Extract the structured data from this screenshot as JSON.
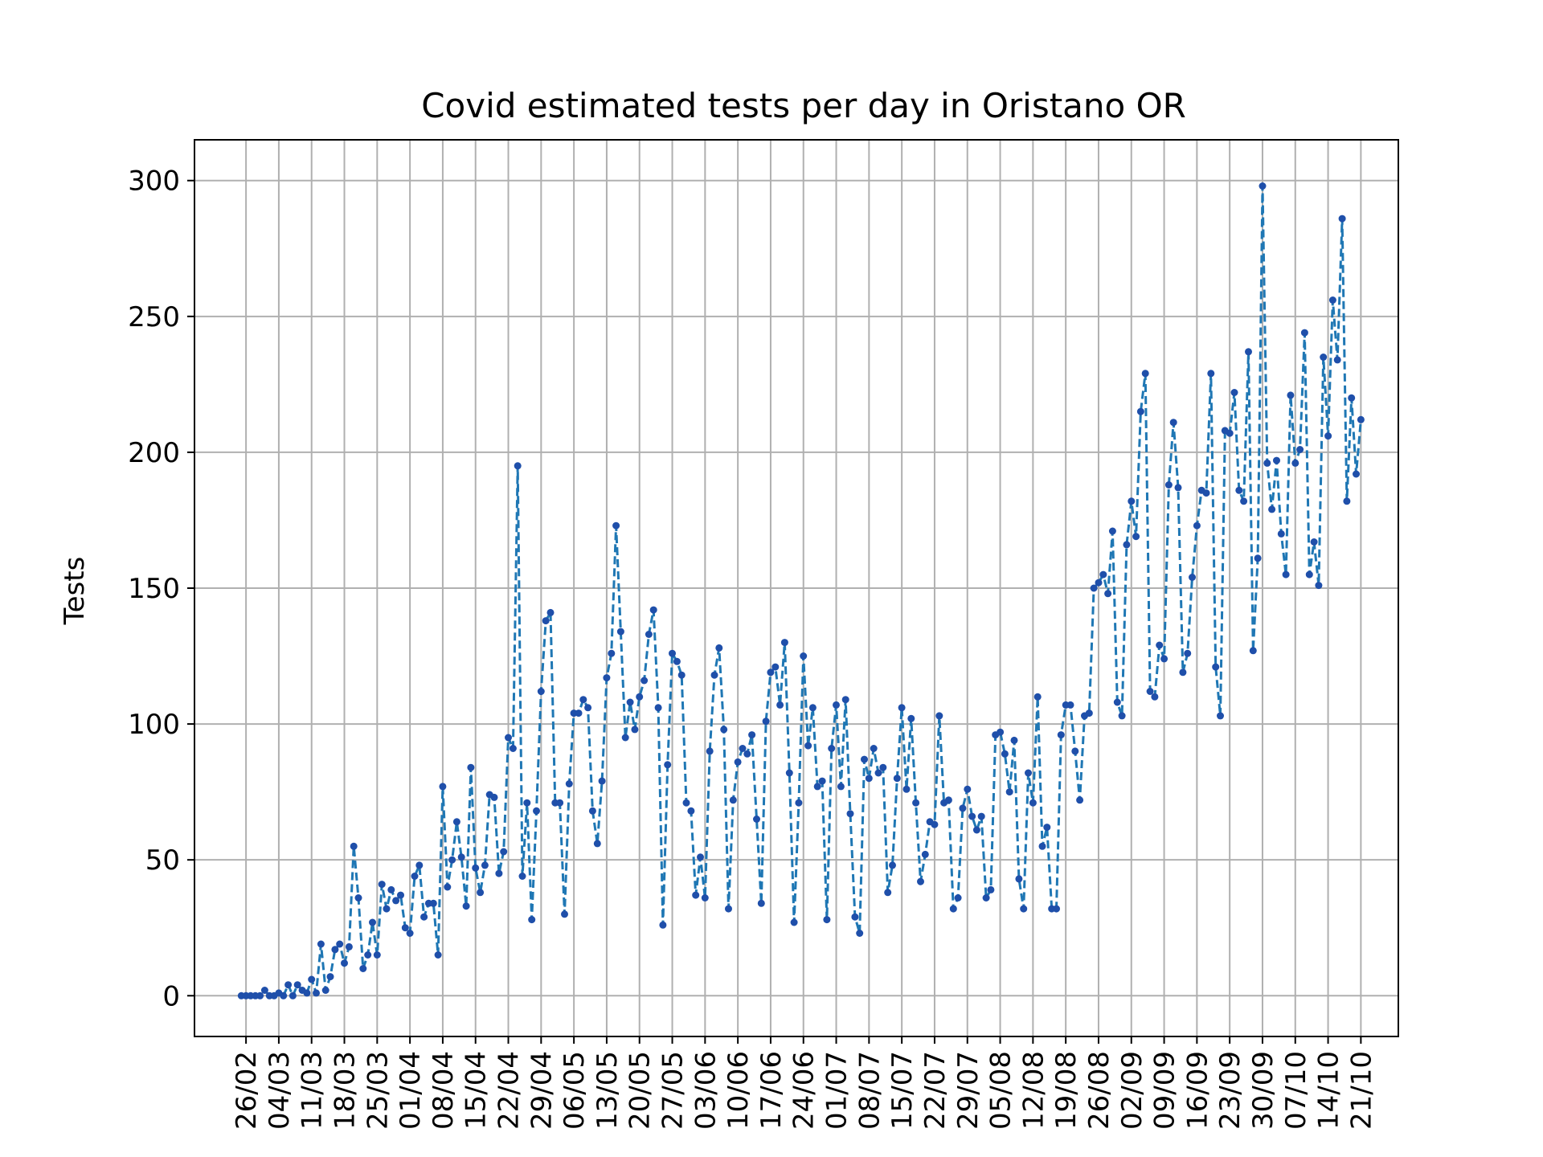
{
  "chart_data": {
    "type": "line",
    "title": "Covid estimated tests per day in Oristano OR",
    "xlabel": "",
    "ylabel": "Tests",
    "xlim": [
      "2020-02-15",
      "2020-10-29"
    ],
    "ylim": [
      -15,
      315
    ],
    "yticks": [
      0,
      50,
      100,
      150,
      200,
      250,
      300
    ],
    "xticks": [
      {
        "date": "2020-02-26",
        "label": "26/02"
      },
      {
        "date": "2020-03-04",
        "label": "04/03"
      },
      {
        "date": "2020-03-11",
        "label": "11/03"
      },
      {
        "date": "2020-03-18",
        "label": "18/03"
      },
      {
        "date": "2020-03-25",
        "label": "25/03"
      },
      {
        "date": "2020-04-01",
        "label": "01/04"
      },
      {
        "date": "2020-04-08",
        "label": "08/04"
      },
      {
        "date": "2020-04-15",
        "label": "15/04"
      },
      {
        "date": "2020-04-22",
        "label": "22/04"
      },
      {
        "date": "2020-04-29",
        "label": "29/04"
      },
      {
        "date": "2020-05-06",
        "label": "06/05"
      },
      {
        "date": "2020-05-13",
        "label": "13/05"
      },
      {
        "date": "2020-05-20",
        "label": "20/05"
      },
      {
        "date": "2020-05-27",
        "label": "27/05"
      },
      {
        "date": "2020-06-03",
        "label": "03/06"
      },
      {
        "date": "2020-06-10",
        "label": "10/06"
      },
      {
        "date": "2020-06-17",
        "label": "17/06"
      },
      {
        "date": "2020-06-24",
        "label": "24/06"
      },
      {
        "date": "2020-07-01",
        "label": "01/07"
      },
      {
        "date": "2020-07-08",
        "label": "08/07"
      },
      {
        "date": "2020-07-15",
        "label": "15/07"
      },
      {
        "date": "2020-07-22",
        "label": "22/07"
      },
      {
        "date": "2020-07-29",
        "label": "29/07"
      },
      {
        "date": "2020-08-05",
        "label": "05/08"
      },
      {
        "date": "2020-08-12",
        "label": "12/08"
      },
      {
        "date": "2020-08-19",
        "label": "19/08"
      },
      {
        "date": "2020-08-26",
        "label": "26/08"
      },
      {
        "date": "2020-09-02",
        "label": "02/09"
      },
      {
        "date": "2020-09-09",
        "label": "09/09"
      },
      {
        "date": "2020-09-16",
        "label": "16/09"
      },
      {
        "date": "2020-09-23",
        "label": "23/09"
      },
      {
        "date": "2020-09-30",
        "label": "30/09"
      },
      {
        "date": "2020-10-07",
        "label": "07/10"
      },
      {
        "date": "2020-10-14",
        "label": "14/10"
      },
      {
        "date": "2020-10-21",
        "label": "21/10"
      }
    ],
    "grid": true,
    "line_style": "dashed",
    "colors": {
      "line": "#1f77b4",
      "marker": "#1f4faa",
      "grid": "#b0b0b0"
    },
    "start_date": "2020-02-25",
    "series": [
      {
        "values": [
          0,
          0,
          0,
          0,
          0,
          2,
          0,
          0,
          1,
          0,
          4,
          0,
          4,
          2,
          1,
          6,
          1,
          19,
          2,
          7,
          17,
          19,
          12,
          18,
          55,
          36,
          10,
          15,
          27,
          15,
          41,
          32,
          39,
          35,
          37,
          25,
          23,
          44,
          48,
          29,
          34,
          34,
          15,
          77,
          40,
          50,
          64,
          51,
          33,
          84,
          47,
          38,
          48,
          74,
          73,
          45,
          53,
          95,
          91,
          195,
          44,
          71,
          28,
          68,
          112,
          138,
          141,
          71,
          71,
          30,
          78,
          104,
          104,
          109,
          106,
          68,
          56,
          79,
          117,
          126,
          173,
          134,
          95,
          108,
          98,
          110,
          116,
          133,
          142,
          106,
          26,
          85,
          126,
          123,
          118,
          71,
          68,
          37,
          51,
          36,
          90,
          118,
          128,
          98,
          32,
          72,
          86,
          91,
          89,
          96,
          65,
          34,
          101,
          119,
          121,
          107,
          130,
          82,
          27,
          71,
          125,
          92,
          106,
          77,
          79,
          28,
          91,
          107,
          77,
          109,
          67,
          29,
          23,
          87,
          80,
          91,
          82,
          84,
          38,
          48,
          80,
          106,
          76,
          102,
          71,
          42,
          52,
          64,
          63,
          103,
          71,
          72,
          32,
          36,
          69,
          76,
          66,
          61,
          66,
          36,
          39,
          96,
          97,
          89,
          75,
          94,
          43,
          32,
          82,
          71,
          110,
          55,
          62,
          32,
          32,
          96,
          107,
          107,
          90,
          72,
          103,
          104,
          150,
          152,
          155,
          148,
          171,
          108,
          103,
          166,
          182,
          169,
          215,
          229,
          112,
          110,
          129,
          124,
          188,
          211,
          187,
          119,
          126,
          154,
          173,
          186,
          185,
          229,
          121,
          103,
          208,
          207,
          222,
          186,
          182,
          237,
          127,
          161,
          298,
          196,
          179,
          197,
          170,
          155,
          221,
          196,
          201,
          244,
          155,
          167,
          151,
          235,
          206,
          256,
          234,
          286,
          182,
          220,
          192,
          212
        ]
      }
    ]
  }
}
